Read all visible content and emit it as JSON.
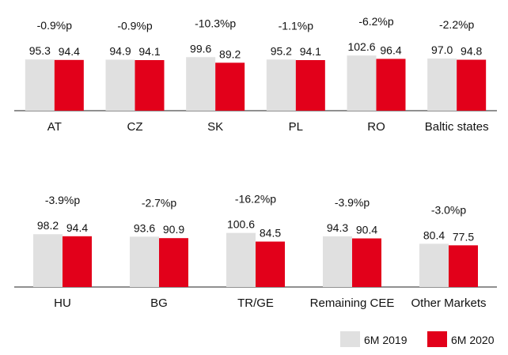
{
  "chart_data": {
    "type": "bar",
    "title": "",
    "xlabel": "",
    "ylabel": "",
    "legend": {
      "placement": "bottom-right",
      "entries": [
        {
          "name": "6M 2019",
          "color": "#e0e0e0"
        },
        {
          "name": "6M 2020",
          "color": "#e2001a"
        }
      ]
    },
    "ylim": [
      0,
      108
    ],
    "rows": [
      {
        "groups": [
          {
            "category": "AT",
            "values": [
              95.3,
              94.4
            ],
            "labels": [
              "95.3",
              "94.4"
            ],
            "change": "-0.9%p"
          },
          {
            "category": "CZ",
            "values": [
              94.9,
              94.1
            ],
            "labels": [
              "94.9",
              "94.1"
            ],
            "change": "-0.9%p"
          },
          {
            "category": "SK",
            "values": [
              99.6,
              89.2
            ],
            "labels": [
              "99.6",
              "89.2"
            ],
            "change": "-10.3%p"
          },
          {
            "category": "PL",
            "values": [
              95.2,
              94.1
            ],
            "labels": [
              "95.2",
              "94.1"
            ],
            "change": "-1.1%p"
          },
          {
            "category": "RO",
            "values": [
              102.6,
              96.4
            ],
            "labels": [
              "102.6",
              "96.4"
            ],
            "change": "-6.2%p"
          },
          {
            "category": "Baltic states",
            "values": [
              97.0,
              94.8
            ],
            "labels": [
              "97.0",
              "94.8"
            ],
            "change": "-2.2%p"
          }
        ]
      },
      {
        "groups": [
          {
            "category": "HU",
            "values": [
              98.2,
              94.4
            ],
            "labels": [
              "98.2",
              "94.4"
            ],
            "change": "-3.9%p"
          },
          {
            "category": "BG",
            "values": [
              93.6,
              90.9
            ],
            "labels": [
              "93.6",
              "90.9"
            ],
            "change": "-2.7%p"
          },
          {
            "category": "TR/GE",
            "values": [
              100.6,
              84.5
            ],
            "labels": [
              "100.6",
              "84.5"
            ],
            "change": "-16.2%p"
          },
          {
            "category": "Remaining CEE",
            "values": [
              94.3,
              90.4
            ],
            "labels": [
              "94.3",
              "90.4"
            ],
            "change": "-3.9%p"
          },
          {
            "category": "Other Markets",
            "values": [
              80.4,
              77.5
            ],
            "labels": [
              "80.4",
              "77.5"
            ],
            "change": "-3.0%p"
          }
        ]
      }
    ]
  }
}
